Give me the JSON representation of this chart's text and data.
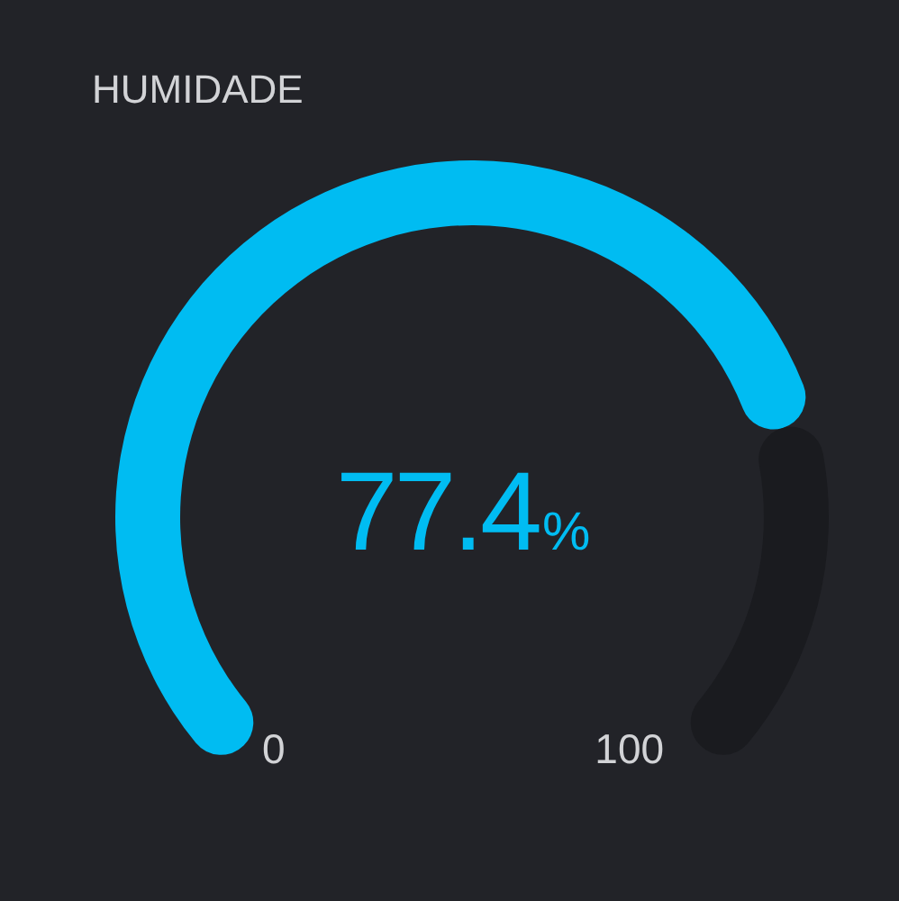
{
  "chart_data": {
    "type": "donut",
    "title": "HUMIDADE",
    "categories": [
      null,
      null
    ],
    "values": [
      77.4,
      22.6
    ],
    "colors": [
      "#00bcf2",
      "#1a1b1f"
    ],
    "value_labels": [
      "77.4%",
      null
    ],
    "annotations": [
      "0",
      "100"
    ]
  }
}
